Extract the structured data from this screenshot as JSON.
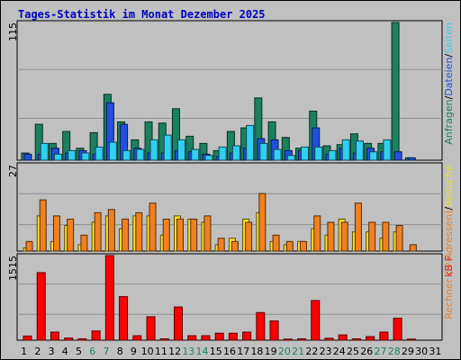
{
  "title": "Tages-Statistik im Monat Dezember 2025",
  "chart_data": [
    {
      "type": "bar",
      "ymax_label": "115",
      "ylim": [
        0,
        115
      ],
      "x": [
        1,
        2,
        3,
        4,
        5,
        6,
        7,
        8,
        9,
        10,
        11,
        12,
        13,
        14,
        15,
        16,
        17,
        18,
        19,
        20,
        21,
        22,
        23,
        24,
        25,
        26,
        27,
        28,
        29,
        30,
        31
      ],
      "weekend_days": [
        6,
        7,
        13,
        14,
        20,
        21,
        27,
        28
      ],
      "legend": [
        {
          "text": "Anfragen",
          "color": "#1a8060"
        },
        {
          "text": "/",
          "color": "#000000"
        },
        {
          "text": "Dateien",
          "color": "#2050e0"
        },
        {
          "text": "/",
          "color": "#000000"
        },
        {
          "text": "Seiten",
          "color": "#30d0f0"
        }
      ],
      "series": [
        {
          "name": "Anfragen",
          "color": "#1a8060",
          "values": [
            6,
            30,
            14,
            24,
            10,
            23,
            55,
            32,
            17,
            32,
            31,
            43,
            20,
            14,
            8,
            24,
            27,
            52,
            32,
            19,
            10,
            41,
            12,
            13,
            22,
            14,
            14,
            115,
            2,
            0,
            0
          ]
        },
        {
          "name": "Dateien",
          "color": "#2050e0",
          "values": [
            5,
            5,
            10,
            6,
            8,
            5,
            48,
            30,
            10,
            6,
            6,
            8,
            7,
            5,
            3,
            6,
            10,
            18,
            17,
            8,
            8,
            27,
            5,
            10,
            6,
            10,
            7,
            7,
            2,
            0,
            0
          ]
        },
        {
          "name": "Seiten",
          "color": "#30d0f0",
          "values": [
            0,
            14,
            5,
            8,
            6,
            11,
            15,
            8,
            9,
            17,
            21,
            17,
            9,
            4,
            11,
            12,
            29,
            14,
            9,
            4,
            11,
            11,
            8,
            17,
            16,
            7,
            17,
            0,
            0,
            0,
            0
          ]
        }
      ]
    },
    {
      "type": "bar",
      "ymax_label": "27",
      "ylim": [
        0,
        27
      ],
      "legend": [
        {
          "text": "Rechner (IP-Adressen)",
          "color": "#f08020"
        },
        {
          "text": "/",
          "color": "#000000"
        },
        {
          "text": "Besuche",
          "color": "#f0e020"
        }
      ],
      "series": [
        {
          "name": "Besuche",
          "color": "#ffe020",
          "values": [
            1,
            11,
            3,
            8,
            2,
            9,
            11,
            7,
            11,
            11,
            5,
            11,
            10,
            9,
            2,
            4,
            10,
            12,
            3,
            2,
            3,
            7,
            5,
            10,
            6,
            6,
            4,
            6,
            0,
            0,
            0
          ]
        },
        {
          "name": "Rechner (IP-Adressen)",
          "color": "#f08020",
          "values": [
            3,
            16,
            11,
            10,
            5,
            12,
            13,
            10,
            12,
            15,
            10,
            10,
            10,
            11,
            4,
            3,
            9,
            18,
            5,
            3,
            3,
            11,
            9,
            9,
            15,
            9,
            9,
            8,
            2,
            0,
            0
          ]
        }
      ]
    },
    {
      "type": "bar",
      "ymax_label": "1515",
      "ylim": [
        0,
        1515
      ],
      "legend": [
        {
          "text": "kB F",
          "color": "#e02020"
        }
      ],
      "series": [
        {
          "name": "kB F",
          "color": "#ff0000",
          "values": [
            75,
            1210,
            145,
            40,
            25,
            165,
            1515,
            780,
            80,
            420,
            25,
            595,
            80,
            80,
            125,
            125,
            145,
            495,
            345,
            20,
            25,
            710,
            35,
            95,
            25,
            65,
            145,
            395,
            20,
            0,
            0
          ]
        }
      ]
    }
  ]
}
